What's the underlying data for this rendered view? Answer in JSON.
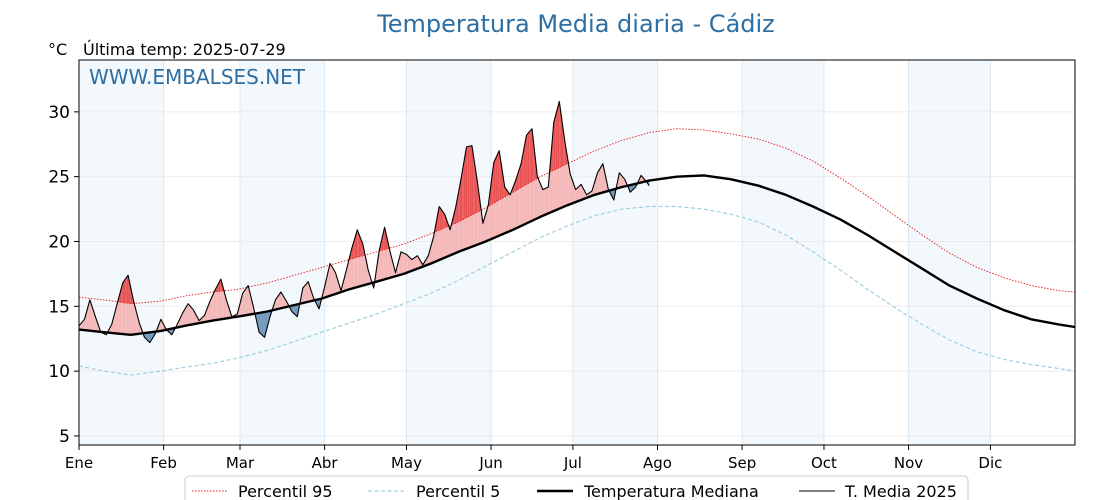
{
  "chart_data": {
    "type": "line",
    "title": "Temperatura Media diaria - Cádiz",
    "unit_label": "°C",
    "last_temp_label": "Última temp: 2025-07-29",
    "watermark": "WWW.EMBALSES.NET",
    "x_axis": {
      "unit": "day of year",
      "xlim": [
        1,
        366
      ],
      "month_ticks": [
        "Ene",
        "Feb",
        "Mar",
        "Abr",
        "May",
        "Jun",
        "Jul",
        "Ago",
        "Sep",
        "Oct",
        "Nov",
        "Dic"
      ],
      "month_start_days": [
        1,
        32,
        60,
        91,
        121,
        152,
        182,
        213,
        244,
        274,
        305,
        335
      ]
    },
    "y_axis": {
      "ylim": [
        4.3,
        34.0
      ],
      "ticks": [
        5,
        10,
        15,
        20,
        25,
        30
      ]
    },
    "grid": true,
    "legend_position": "bottom-center",
    "colors": {
      "title": "#2e6fa3",
      "p95": "#e41a1c",
      "p5": "#9fd0e0",
      "median": "#000000",
      "year": "#000000",
      "above_fill": "#f4b6b6",
      "above_strong": "#e85252",
      "below_fill": "#6f95ba",
      "band": "#f3f8fd"
    },
    "series": [
      {
        "name": "Percentil 95",
        "style": "dotted",
        "x": [
          1,
          10,
          20,
          31,
          40,
          50,
          59,
          70,
          80,
          90,
          100,
          110,
          120,
          130,
          140,
          150,
          160,
          170,
          180,
          190,
          200,
          210,
          220,
          230,
          240,
          250,
          260,
          270,
          280,
          290,
          300,
          310,
          320,
          330,
          340,
          350,
          360,
          366
        ],
        "y": [
          15.7,
          15.5,
          15.2,
          15.4,
          15.8,
          16.1,
          16.3,
          16.8,
          17.4,
          18.0,
          18.6,
          19.2,
          19.8,
          20.6,
          21.5,
          22.6,
          23.8,
          25.0,
          26.0,
          27.0,
          27.8,
          28.4,
          28.7,
          28.6,
          28.3,
          27.9,
          27.2,
          26.2,
          24.9,
          23.5,
          22.0,
          20.5,
          19.1,
          18.0,
          17.2,
          16.6,
          16.2,
          16.1
        ]
      },
      {
        "name": "Percentil 5",
        "style": "dashed",
        "x": [
          1,
          10,
          20,
          31,
          40,
          50,
          59,
          70,
          80,
          90,
          100,
          110,
          120,
          130,
          140,
          150,
          160,
          170,
          180,
          190,
          200,
          210,
          220,
          230,
          240,
          250,
          260,
          270,
          280,
          290,
          300,
          310,
          320,
          330,
          340,
          350,
          360,
          366
        ],
        "y": [
          10.4,
          10.0,
          9.7,
          10.0,
          10.3,
          10.6,
          11.0,
          11.6,
          12.3,
          13.0,
          13.7,
          14.4,
          15.2,
          16.0,
          17.0,
          18.1,
          19.2,
          20.3,
          21.2,
          22.0,
          22.5,
          22.7,
          22.7,
          22.5,
          22.1,
          21.5,
          20.5,
          19.2,
          17.8,
          16.3,
          14.9,
          13.6,
          12.4,
          11.5,
          10.9,
          10.5,
          10.2,
          10.0
        ]
      },
      {
        "name": "Temperatura Mediana",
        "style": "thick",
        "x": [
          1,
          10,
          20,
          31,
          40,
          50,
          59,
          70,
          80,
          90,
          100,
          110,
          120,
          130,
          140,
          150,
          160,
          170,
          180,
          190,
          200,
          210,
          220,
          230,
          240,
          250,
          260,
          270,
          280,
          290,
          300,
          310,
          320,
          330,
          340,
          350,
          360,
          366
        ],
        "y": [
          13.2,
          13.0,
          12.8,
          13.1,
          13.5,
          13.9,
          14.2,
          14.6,
          15.1,
          15.6,
          16.3,
          16.9,
          17.5,
          18.3,
          19.2,
          20.0,
          20.9,
          21.9,
          22.8,
          23.6,
          24.2,
          24.7,
          25.0,
          25.1,
          24.8,
          24.3,
          23.6,
          22.7,
          21.7,
          20.5,
          19.2,
          17.9,
          16.6,
          15.6,
          14.7,
          14.0,
          13.6,
          13.4
        ]
      },
      {
        "name": "T. Media 2025",
        "style": "thin",
        "x": [
          1,
          3,
          5,
          7,
          9,
          11,
          13,
          15,
          17,
          19,
          21,
          23,
          25,
          27,
          29,
          31,
          33,
          35,
          37,
          39,
          41,
          43,
          45,
          47,
          49,
          51,
          53,
          55,
          57,
          59,
          61,
          63,
          65,
          67,
          69,
          71,
          73,
          75,
          77,
          79,
          81,
          83,
          85,
          87,
          89,
          91,
          93,
          95,
          97,
          99,
          101,
          103,
          105,
          107,
          109,
          111,
          113,
          115,
          117,
          119,
          121,
          123,
          125,
          127,
          129,
          131,
          133,
          135,
          137,
          139,
          141,
          143,
          145,
          147,
          149,
          151,
          153,
          155,
          157,
          159,
          161,
          163,
          165,
          167,
          169,
          171,
          173,
          175,
          177,
          179,
          181,
          183,
          185,
          187,
          189,
          191,
          193,
          195,
          197,
          199,
          201,
          203,
          205,
          207,
          209,
          210
        ],
        "y": [
          13.5,
          14.0,
          15.5,
          14.2,
          13.0,
          12.8,
          13.6,
          15.2,
          16.8,
          17.4,
          15.4,
          13.8,
          12.6,
          12.2,
          12.9,
          14.0,
          13.2,
          12.8,
          13.6,
          14.5,
          15.2,
          14.7,
          13.9,
          14.3,
          15.4,
          16.3,
          17.1,
          15.5,
          14.2,
          14.4,
          16.0,
          16.6,
          14.9,
          13.0,
          12.6,
          14.2,
          15.5,
          16.1,
          15.4,
          14.6,
          14.2,
          16.4,
          16.9,
          15.6,
          14.8,
          16.5,
          18.3,
          17.6,
          16.2,
          17.8,
          19.5,
          20.9,
          19.8,
          17.8,
          16.4,
          19.3,
          21.1,
          19.2,
          17.6,
          19.2,
          19.0,
          18.6,
          18.9,
          18.2,
          18.9,
          20.4,
          22.7,
          22.1,
          20.9,
          22.6,
          24.8,
          27.3,
          27.4,
          24.6,
          21.4,
          22.8,
          26.1,
          27.0,
          24.2,
          23.6,
          24.7,
          26.0,
          28.2,
          28.7,
          25.0,
          24.0,
          24.2,
          29.2,
          30.8,
          27.8,
          25.2,
          24.0,
          24.4,
          23.6,
          23.9,
          25.3,
          26.0,
          24.0,
          23.2,
          25.3,
          24.8,
          23.8,
          24.2,
          25.1,
          24.6,
          24.3
        ]
      }
    ],
    "legend": [
      "Percentil 95",
      "Percentil 5",
      "Temperatura Mediana",
      "T. Media 2025"
    ]
  }
}
